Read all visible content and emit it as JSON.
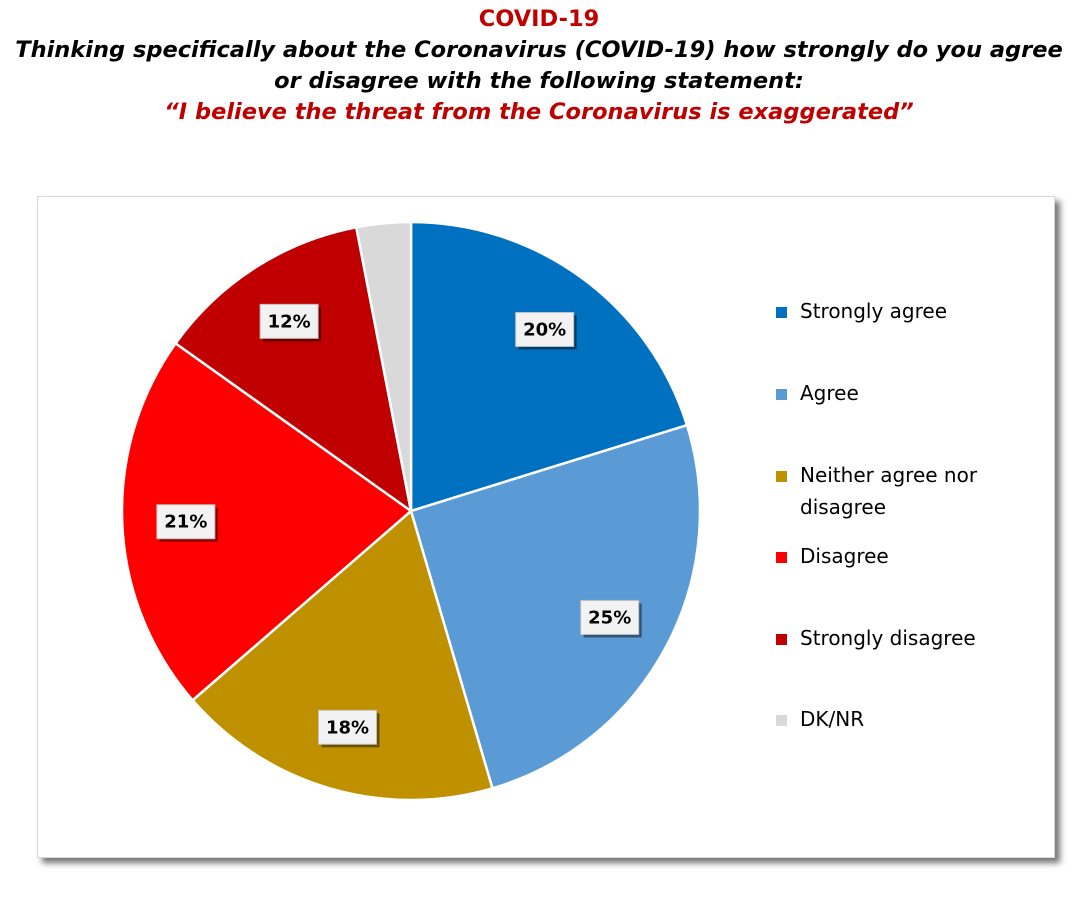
{
  "header": {
    "title": "COVID-19",
    "question_line1": "Thinking specifically about the Coronavirus (COVID-19) how strongly do you agree",
    "question_line2": "or disagree with the following statement:",
    "statement": "“I believe the threat from the Coronavirus is exaggerated”"
  },
  "chart_data": {
    "type": "pie",
    "title": "",
    "legend_position": "right",
    "start_angle_deg": 0,
    "direction": "clockwise",
    "slices": [
      {
        "name": "Strongly agree",
        "value": 20,
        "label": "20%",
        "color": "#0070c0"
      },
      {
        "name": "Agree",
        "value": 25,
        "label": "25%",
        "color": "#5b9bd5"
      },
      {
        "name": "Neither agree nor disagree",
        "value": 18,
        "label": "18%",
        "color": "#bf9000"
      },
      {
        "name": "Disagree",
        "value": 21,
        "label": "21%",
        "color": "#ff0000"
      },
      {
        "name": "Strongly disagree",
        "value": 12,
        "label": "12%",
        "color": "#c00000"
      },
      {
        "name": "DK/NR",
        "value": 3,
        "label": "",
        "color": "#d9d9d9"
      }
    ]
  }
}
